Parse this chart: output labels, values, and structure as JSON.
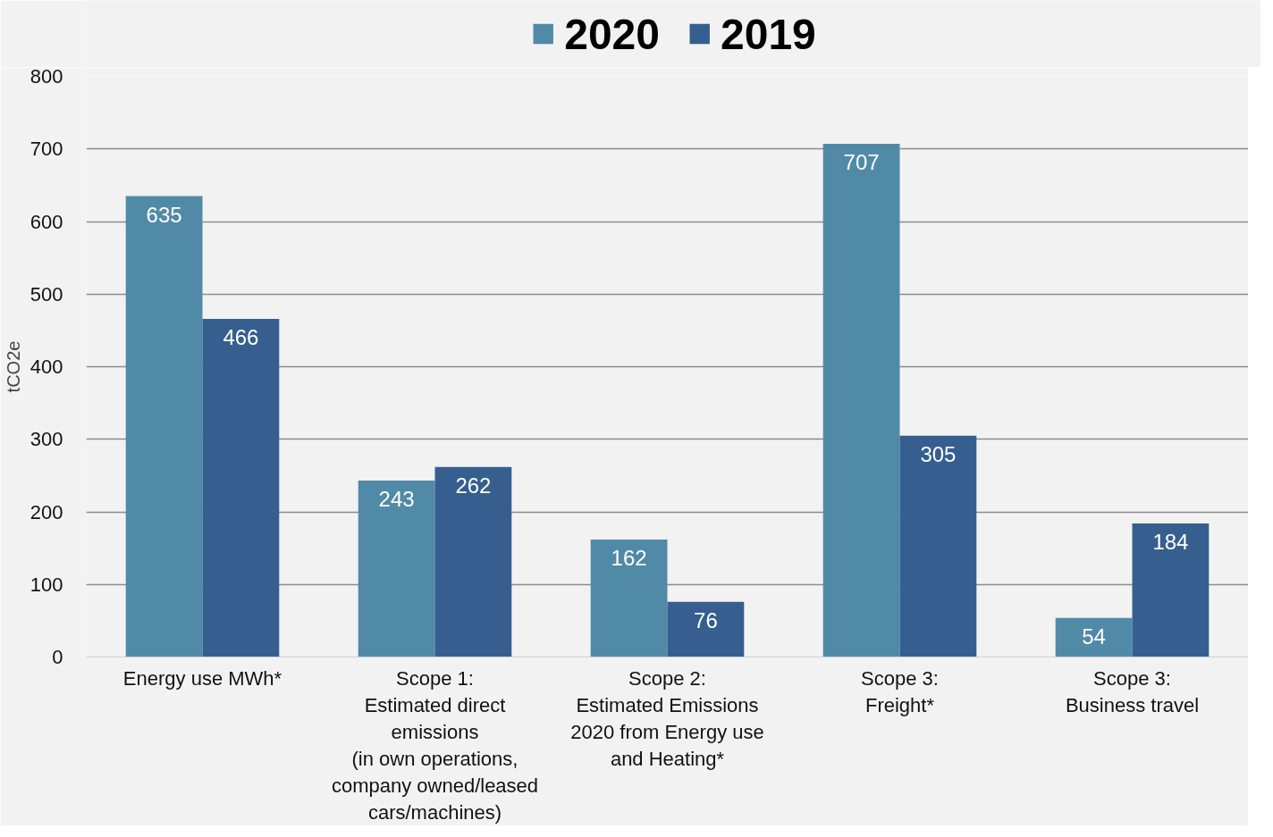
{
  "chart_data": {
    "type": "bar",
    "ylabel": "tCO2e",
    "categories": [
      "Energy use MWh*",
      "Scope 1:\nEstimated direct\nemissions\n(in own operations,\ncompany owned/leased\ncars/machines)",
      "Scope 2:\nEstimated Emissions\n2020 from Energy use\nand Heating*",
      "Scope 3:\nFreight*",
      "Scope 3:\nBusiness travel"
    ],
    "series": [
      {
        "name": "2020",
        "color": "#518aa7",
        "values": [
          635,
          243,
          162,
          707,
          54
        ]
      },
      {
        "name": "2019",
        "color": "#365f8f",
        "values": [
          466,
          262,
          76,
          305,
          184
        ]
      }
    ],
    "ylim": [
      0,
      800
    ],
    "yticks": [
      0,
      100,
      200,
      300,
      400,
      500,
      600,
      700,
      800
    ],
    "grid": "y",
    "legend": "top",
    "data_labels": true
  }
}
